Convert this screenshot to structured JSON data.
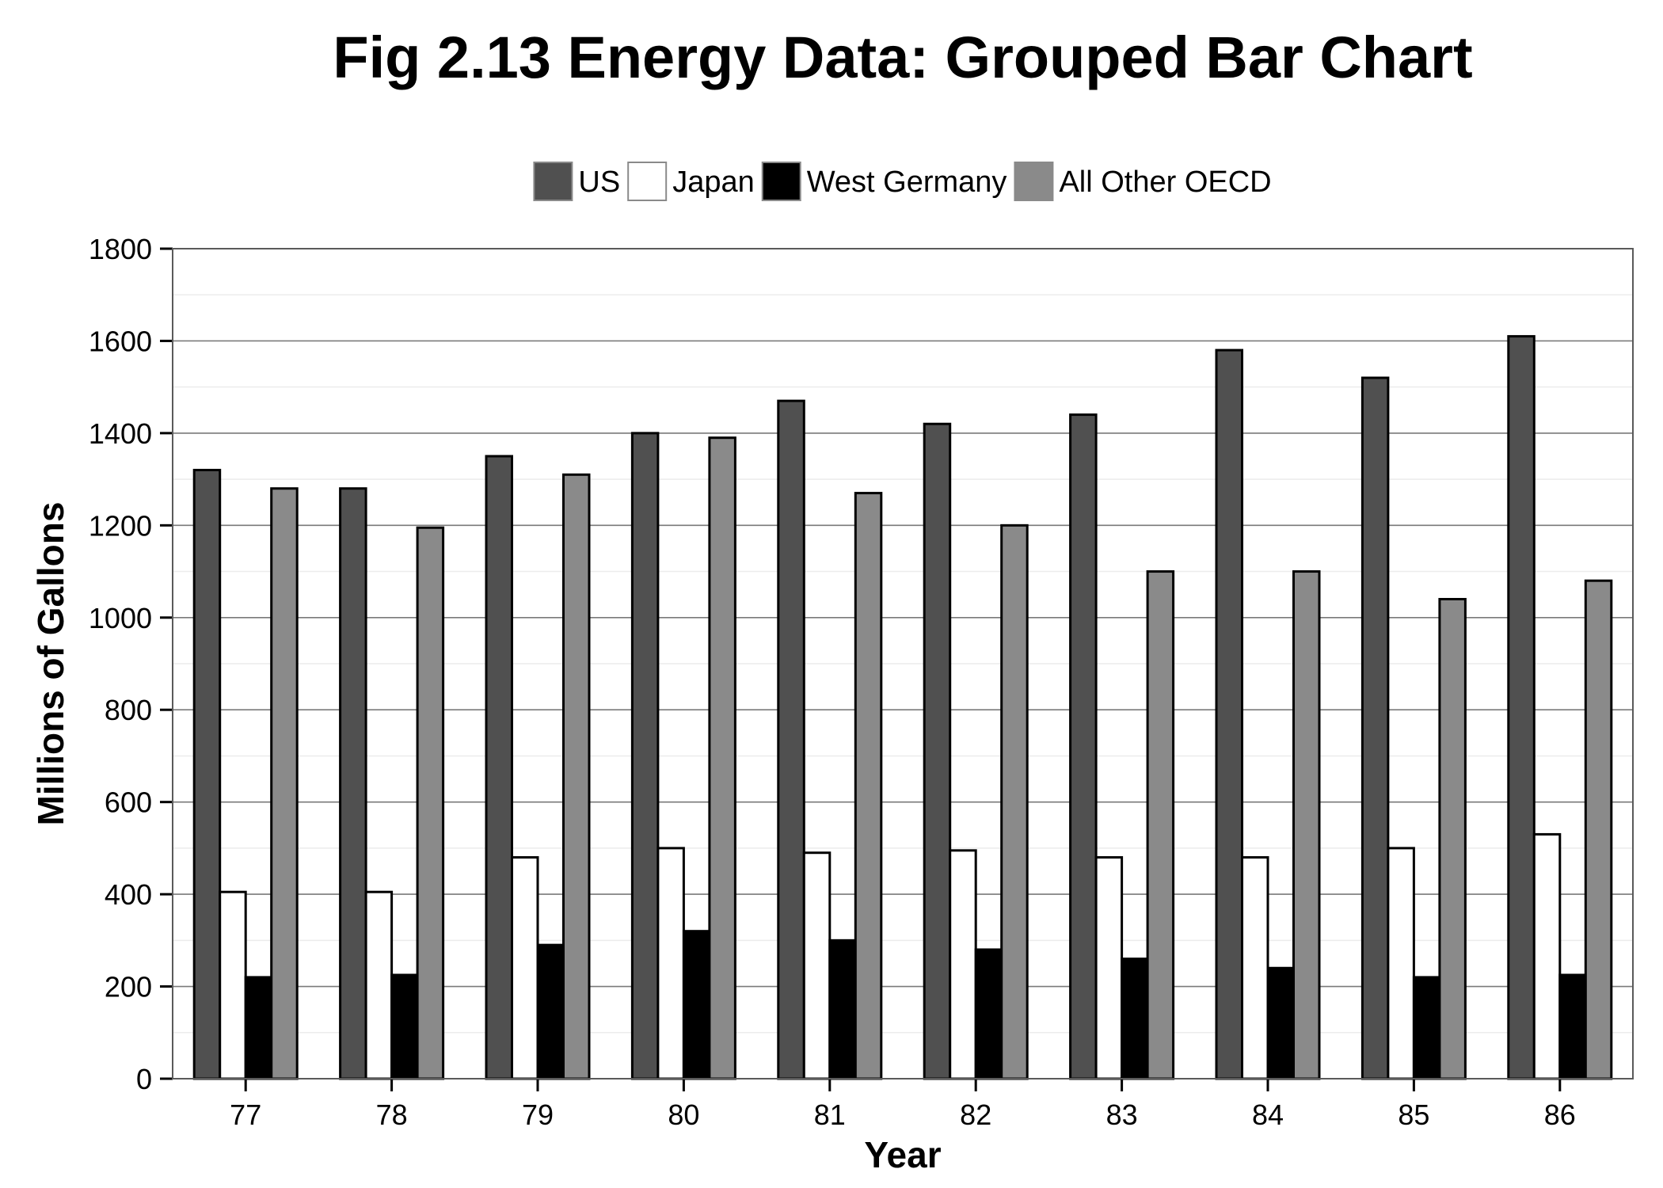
{
  "chart_data": {
    "type": "bar",
    "title": "Fig 2.13 Energy Data: Grouped Bar Chart",
    "xlabel": "Year",
    "ylabel": "Millions of Gallons",
    "categories": [
      "77",
      "78",
      "79",
      "80",
      "81",
      "82",
      "83",
      "84",
      "85",
      "86"
    ],
    "series": [
      {
        "name": "US",
        "color": "#505050",
        "values": [
          1320,
          1280,
          1350,
          1400,
          1470,
          1420,
          1440,
          1580,
          1520,
          1610
        ]
      },
      {
        "name": "Japan",
        "color": "#ffffff",
        "values": [
          405,
          405,
          480,
          500,
          490,
          495,
          480,
          480,
          500,
          530
        ]
      },
      {
        "name": "West Germany",
        "color": "#000000",
        "values": [
          220,
          225,
          290,
          320,
          300,
          280,
          260,
          240,
          220,
          225
        ]
      },
      {
        "name": "All Other OECD",
        "color": "#8a8a8a",
        "values": [
          1280,
          1195,
          1310,
          1390,
          1270,
          1200,
          1100,
          1100,
          1040,
          1080
        ]
      }
    ],
    "ylim": [
      0,
      1800
    ],
    "yticks": [
      "0",
      "200",
      "400",
      "600",
      "800",
      "1000",
      "1200",
      "1400",
      "1600",
      "1800"
    ],
    "grid": true,
    "legend_position": "top"
  }
}
